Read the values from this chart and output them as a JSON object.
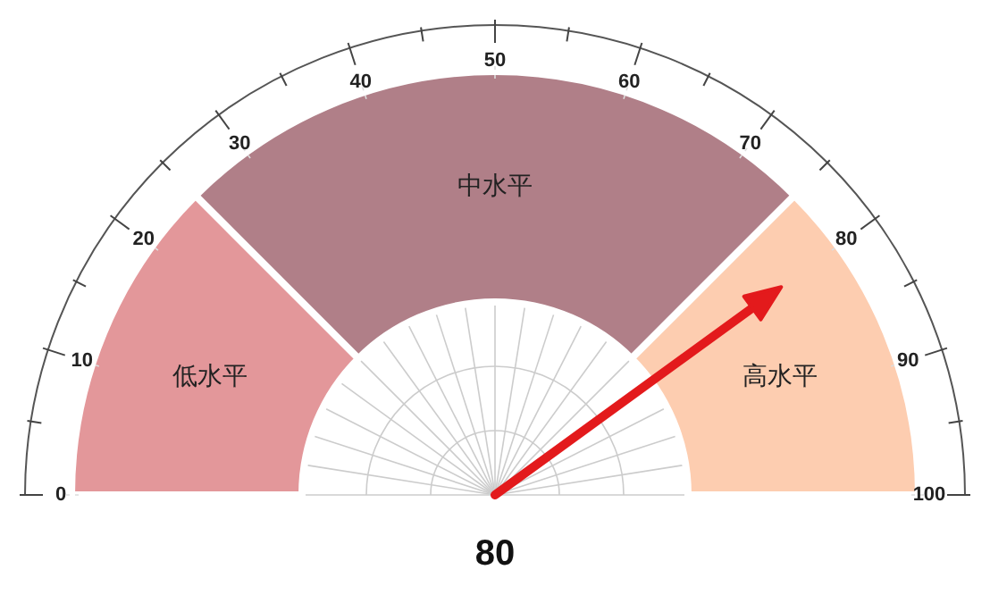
{
  "chart_data": {
    "type": "donut",
    "categories": [
      "低水平",
      "中水平",
      "高水平"
    ],
    "values": [
      25,
      50,
      25
    ],
    "colors": [
      "#e3979a",
      "#b07f88",
      "#fdcdb0"
    ],
    "needle": "高水平",
    "annotations": [
      "0",
      "10",
      "20",
      "30",
      "40",
      "50",
      "60",
      "70",
      "80",
      "90",
      "100",
      "80"
    ]
  }
}
